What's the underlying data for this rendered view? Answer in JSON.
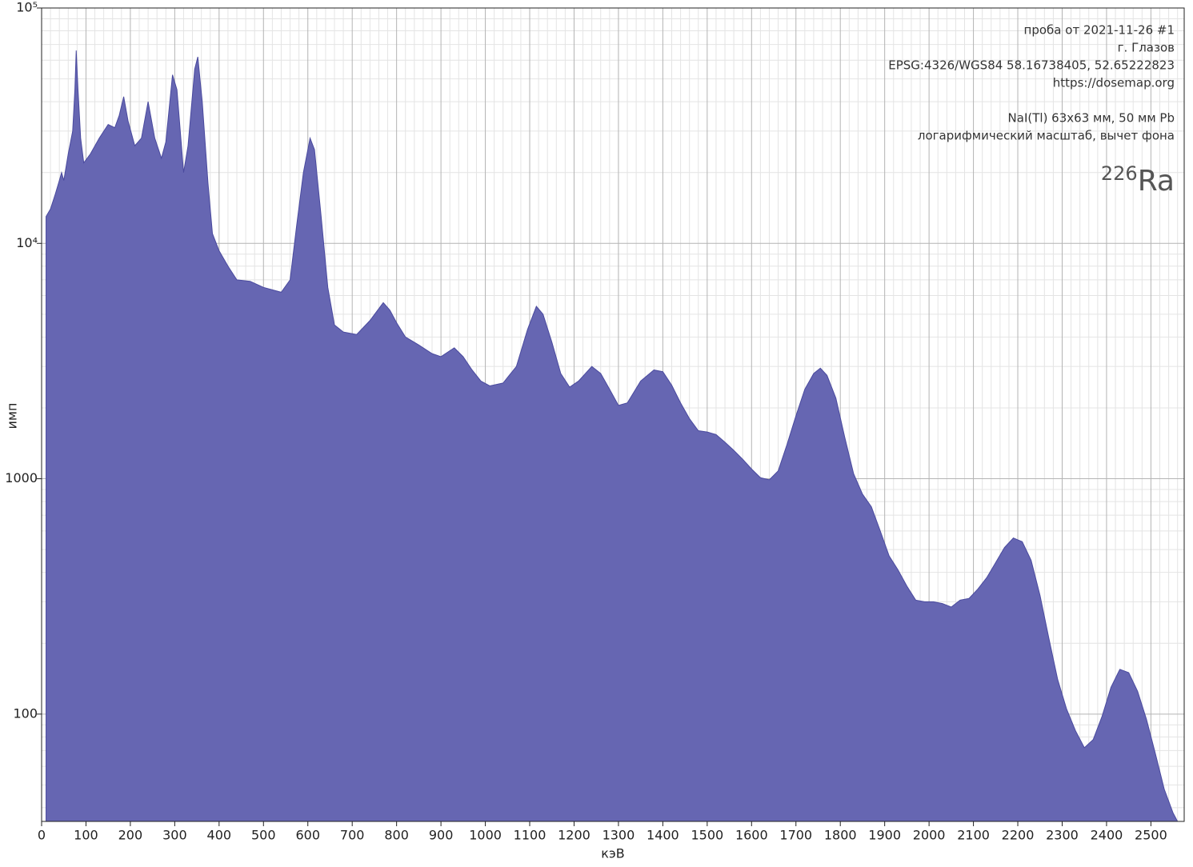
{
  "chart_data": {
    "type": "area",
    "xlabel": "кэВ",
    "ylabel": "имп",
    "annotations": [
      [
        "проба от 2021-11-26 #1",
        "г. Глазов",
        "EPSG:4326/WGS84  58.16738405, 52.65222823",
        "https://dosemap.org"
      ],
      [
        "NaI(Tl) 63x63 мм, 50 мм Pb",
        "логарифмический масштаб, вычет фона"
      ]
    ],
    "isotope_mass": "226",
    "isotope": "Ra",
    "color": "#6666b2",
    "edge_color": "#4a4a9e",
    "log_y": true,
    "grid": true,
    "xlim": [
      0,
      2575
    ],
    "ylim": [
      35,
      100000
    ],
    "xticks": [
      0,
      100,
      200,
      300,
      400,
      500,
      600,
      700,
      800,
      900,
      1000,
      1100,
      1200,
      1300,
      1400,
      1500,
      1600,
      1700,
      1800,
      1900,
      2000,
      2100,
      2200,
      2300,
      2400,
      2500
    ],
    "xminorticks": [
      20,
      40,
      60,
      80,
      120,
      140,
      160,
      180,
      220,
      240,
      260,
      280,
      320,
      340,
      360,
      380,
      420,
      440,
      460,
      480,
      520,
      540,
      560,
      580,
      620,
      640,
      660,
      680,
      720,
      740,
      760,
      780,
      820,
      840,
      860,
      880,
      920,
      940,
      960,
      980,
      1020,
      1040,
      1060,
      1080,
      1120,
      1140,
      1160,
      1180,
      1220,
      1240,
      1260,
      1280,
      1320,
      1340,
      1360,
      1380,
      1420,
      1440,
      1460,
      1480,
      1520,
      1540,
      1560,
      1580,
      1620,
      1640,
      1660,
      1680,
      1720,
      1740,
      1760,
      1780,
      1820,
      1840,
      1860,
      1880,
      1920,
      1940,
      1960,
      1980,
      2020,
      2040,
      2060,
      2080,
      2120,
      2140,
      2160,
      2180,
      2220,
      2240,
      2260,
      2280,
      2320,
      2340,
      2360,
      2380,
      2420,
      2440,
      2460,
      2480,
      2520,
      2540,
      2560
    ],
    "yticks": [
      {
        "value": 100,
        "label": "100"
      },
      {
        "value": 1000,
        "label": "1000"
      },
      {
        "value": 10000,
        "label": "10⁴"
      },
      {
        "value": 100000,
        "label": "10⁵"
      }
    ],
    "yminorticks": [
      40,
      50,
      60,
      70,
      80,
      90,
      200,
      300,
      400,
      500,
      600,
      700,
      800,
      900,
      2000,
      3000,
      4000,
      5000,
      6000,
      7000,
      8000,
      9000,
      20000,
      30000,
      40000,
      50000,
      60000,
      70000,
      80000,
      90000
    ],
    "x": [
      10,
      20,
      30,
      40,
      45,
      50,
      60,
      70,
      75,
      78,
      82,
      88,
      95,
      110,
      130,
      150,
      165,
      175,
      185,
      195,
      210,
      225,
      240,
      255,
      270,
      280,
      295,
      305,
      320,
      330,
      345,
      352,
      362,
      375,
      385,
      400,
      420,
      440,
      470,
      500,
      540,
      560,
      575,
      590,
      605,
      615,
      630,
      645,
      660,
      680,
      710,
      740,
      770,
      785,
      800,
      820,
      850,
      880,
      900,
      930,
      950,
      970,
      990,
      1010,
      1040,
      1070,
      1095,
      1115,
      1130,
      1150,
      1170,
      1190,
      1210,
      1240,
      1260,
      1280,
      1300,
      1320,
      1350,
      1380,
      1400,
      1420,
      1440,
      1460,
      1480,
      1500,
      1520,
      1540,
      1560,
      1580,
      1600,
      1620,
      1640,
      1660,
      1680,
      1700,
      1720,
      1740,
      1755,
      1770,
      1790,
      1810,
      1830,
      1850,
      1870,
      1890,
      1910,
      1930,
      1950,
      1970,
      1990,
      2010,
      2030,
      2050,
      2070,
      2090,
      2110,
      2130,
      2150,
      2170,
      2190,
      2210,
      2230,
      2250,
      2270,
      2290,
      2310,
      2330,
      2350,
      2370,
      2390,
      2410,
      2430,
      2450,
      2470,
      2490,
      2510,
      2530,
      2550,
      2560
    ],
    "values": [
      13000,
      14000,
      16000,
      18500,
      20000,
      18500,
      24000,
      30000,
      45000,
      66000,
      45000,
      28000,
      22000,
      24000,
      28000,
      32000,
      31000,
      35000,
      42000,
      33000,
      26000,
      28000,
      40000,
      28000,
      23000,
      27000,
      52000,
      45000,
      20000,
      26000,
      55000,
      62000,
      40000,
      18000,
      11000,
      9300,
      8000,
      7000,
      6900,
      6500,
      6200,
      7000,
      12000,
      20000,
      28000,
      25000,
      13000,
      6500,
      4500,
      4200,
      4100,
      4700,
      5600,
      5200,
      4600,
      4000,
      3700,
      3400,
      3300,
      3600,
      3300,
      2900,
      2600,
      2480,
      2550,
      3000,
      4300,
      5400,
      5000,
      3800,
      2800,
      2450,
      2600,
      3000,
      2800,
      2400,
      2050,
      2100,
      2600,
      2900,
      2850,
      2500,
      2100,
      1800,
      1600,
      1580,
      1540,
      1430,
      1320,
      1210,
      1100,
      1010,
      990,
      1080,
      1400,
      1850,
      2400,
      2800,
      2950,
      2750,
      2200,
      1500,
      1050,
      860,
      760,
      600,
      470,
      410,
      350,
      305,
      300,
      300,
      295,
      285,
      305,
      310,
      340,
      380,
      440,
      510,
      560,
      540,
      450,
      320,
      210,
      140,
      105,
      85,
      72,
      78,
      98,
      130,
      155,
      150,
      125,
      95,
      68,
      48,
      38,
      35
    ]
  }
}
